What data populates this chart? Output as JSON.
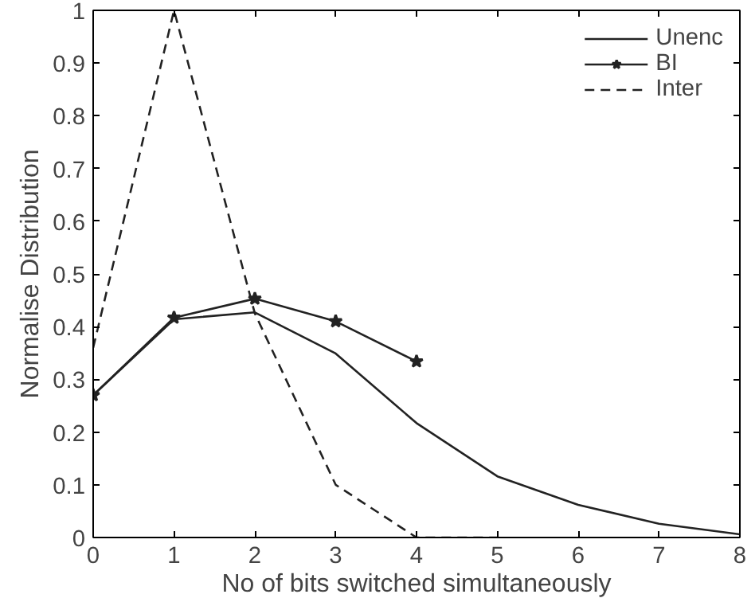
{
  "chart_data": {
    "type": "line",
    "xlabel": "No of bits switched simultaneously",
    "ylabel": "Normalise Distribution",
    "x": [
      0,
      1,
      2,
      3,
      4,
      5,
      6,
      7,
      8
    ],
    "xlim": [
      0,
      8
    ],
    "ylim": [
      0,
      1
    ],
    "xticks": [
      0,
      1,
      2,
      3,
      4,
      5,
      6,
      7,
      8
    ],
    "yticks": [
      0,
      0.1,
      0.2,
      0.3,
      0.4,
      0.5,
      0.6,
      0.7,
      0.8,
      0.9,
      1
    ],
    "legend": "top right",
    "grid": false,
    "series": [
      {
        "name": "Unenc",
        "color": "#222222",
        "marker": "none",
        "line_style": "solid",
        "values": [
          0.27,
          0.414,
          0.427,
          0.349,
          0.217,
          0.116,
          0.062,
          0.026,
          0.006
        ]
      },
      {
        "name": "BI",
        "color": "#222222",
        "marker": "star",
        "line_style": "solid",
        "x": [
          0,
          1,
          2,
          3,
          4
        ],
        "values": [
          0.27,
          0.417,
          0.453,
          0.41,
          0.334
        ]
      },
      {
        "name": "Inter",
        "color": "#222222",
        "marker": "none",
        "line_style": "dashed",
        "x": [
          0,
          1,
          2,
          3,
          4,
          5
        ],
        "values": [
          0.36,
          1.0,
          0.425,
          0.1,
          0.0,
          0.0
        ]
      }
    ]
  }
}
